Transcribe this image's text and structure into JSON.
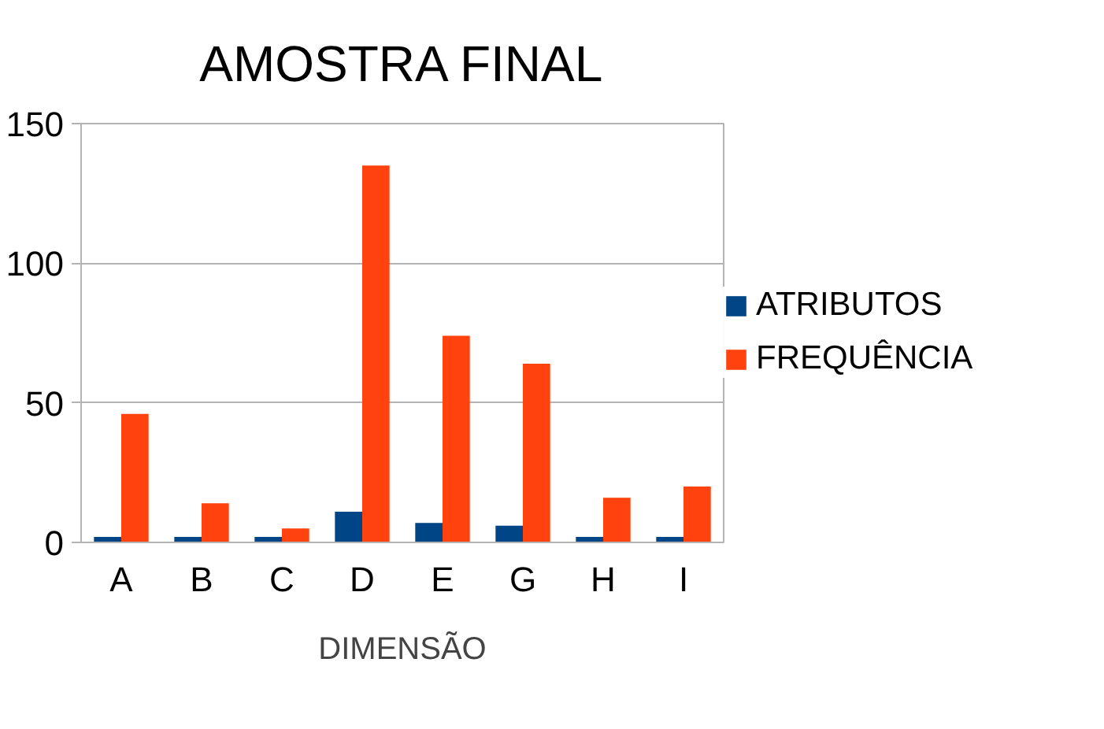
{
  "chart_data": {
    "type": "bar",
    "title": "AMOSTRA FINAL",
    "xlabel": "DIMENSÃO",
    "categories": [
      "A",
      "B",
      "C",
      "D",
      "E",
      "G",
      "H",
      "I"
    ],
    "series": [
      {
        "name": "ATRIBUTOS",
        "color": "#004586",
        "values": [
          2,
          2,
          2,
          11,
          7,
          6,
          2,
          2
        ]
      },
      {
        "name": "FREQUÊNCIA",
        "color": "#ff420e",
        "values": [
          46,
          14,
          5,
          135,
          74,
          64,
          16,
          20
        ]
      }
    ],
    "ylim": [
      0,
      150
    ],
    "yticks": [
      0,
      50,
      100,
      150
    ],
    "grid": "y",
    "legend": "right"
  }
}
